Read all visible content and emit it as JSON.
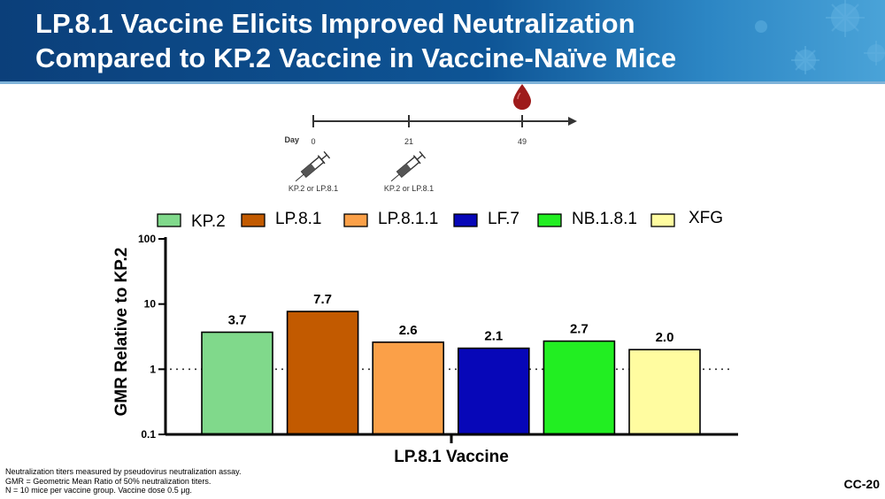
{
  "header": {
    "title_line1": "LP.8.1 Vaccine Elicits Improved Neutralization",
    "title_line2": "Compared to KP.2 Vaccine in Vaccine-Naïve Mice"
  },
  "timeline": {
    "label": "Day",
    "days": [
      "0",
      "21",
      "49"
    ],
    "dose_labels": [
      "KP.2 or LP.8.1",
      "KP.2 or LP.8.1"
    ]
  },
  "chart_data": {
    "type": "bar",
    "title": "",
    "xlabel": "LP.8.1 Vaccine",
    "ylabel": "GMR Relative to KP.2",
    "yscale": "log",
    "ylim": [
      0.1,
      100
    ],
    "yticks": [
      "0.1",
      "1",
      "10",
      "100"
    ],
    "reference_line": 1,
    "legend_position": "top",
    "categories": [
      "KP.2",
      "LP.8.1",
      "LP.8.1.1",
      "LF.7",
      "NB.1.8.1",
      "XFG"
    ],
    "values": [
      3.7,
      7.7,
      2.6,
      2.1,
      2.7,
      2.0
    ],
    "value_labels": [
      "3.7",
      "7.7",
      "2.6",
      "2.1",
      "2.7",
      "2.0"
    ],
    "colors": [
      "#80d98b",
      "#c25a00",
      "#fba048",
      "#0707b8",
      "#22ee22",
      "#fffca0"
    ]
  },
  "footnotes": [
    "Neutralization titers measured by pseudovirus neutralization assay.",
    "GMR = Geometric Mean Ratio of 50% neutralization titers.",
    "N = 10 mice per vaccine group. Vaccine dose 0.5 μg."
  ],
  "slide_number": "CC-20"
}
